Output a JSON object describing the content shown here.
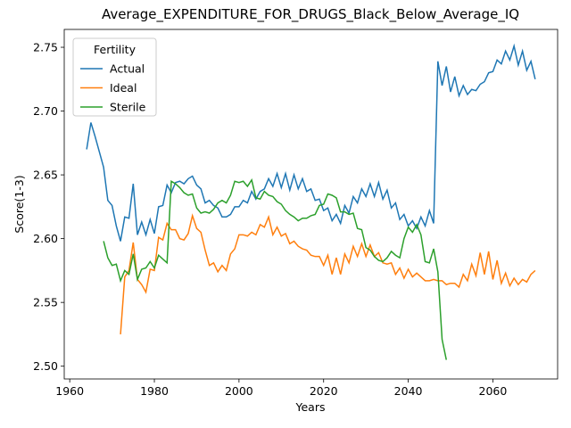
{
  "chart_data": {
    "type": "line",
    "title": "Average_EXPENDITURE_FOR_DRUGS_Black_Below_Average_IQ",
    "x_label": "Years",
    "y_label": "Score(1-3)",
    "legend_title": "Fertility",
    "legend_position": "upper-left",
    "grid": false,
    "xlim": [
      1958.7,
      2075.3
    ],
    "ylim": [
      2.49,
      2.764
    ],
    "xticks": [
      1960,
      1980,
      2000,
      2020,
      2040,
      2060
    ],
    "yticks": [
      {
        "value": 2.5,
        "label": "2.50"
      },
      2.55,
      {
        "value": 2.6,
        "label": "2.60"
      },
      2.65,
      {
        "value": 2.7,
        "label": "2.70"
      },
      2.75
    ],
    "x": [
      1964,
      1965,
      1966,
      1967,
      1968,
      1969,
      1970,
      1971,
      1972,
      1973,
      1974,
      1975,
      1976,
      1977,
      1978,
      1979,
      1980,
      1981,
      1982,
      1983,
      1984,
      1985,
      1986,
      1987,
      1988,
      1989,
      1990,
      1991,
      1992,
      1993,
      1994,
      1995,
      1996,
      1997,
      1998,
      1999,
      2000,
      2001,
      2002,
      2003,
      2004,
      2005,
      2006,
      2007,
      2008,
      2009,
      2010,
      2011,
      2012,
      2013,
      2014,
      2015,
      2016,
      2017,
      2018,
      2019,
      2020,
      2021,
      2022,
      2023,
      2024,
      2025,
      2026,
      2027,
      2028,
      2029,
      2030,
      2031,
      2032,
      2033,
      2034,
      2035,
      2036,
      2037,
      2038,
      2039,
      2040,
      2041,
      2042,
      2043,
      2044,
      2045,
      2046,
      2047,
      2048,
      2049,
      2050,
      2051,
      2052,
      2053,
      2054,
      2055,
      2056,
      2057,
      2058,
      2059,
      2060,
      2061,
      2062,
      2063,
      2064,
      2065,
      2066,
      2067,
      2068,
      2069,
      2070
    ],
    "series": [
      {
        "name": "Actual",
        "color": "#1f77b4",
        "values": [
          2.67,
          2.691,
          2.68,
          2.668,
          2.656,
          2.63,
          2.626,
          2.61,
          2.598,
          2.617,
          2.616,
          2.643,
          2.603,
          2.613,
          2.603,
          2.615,
          2.604,
          2.625,
          2.626,
          2.642,
          2.636,
          2.644,
          2.645,
          2.643,
          2.647,
          2.649,
          2.642,
          2.639,
          2.628,
          2.63,
          2.626,
          2.624,
          2.617,
          2.617,
          2.619,
          2.625,
          2.625,
          2.63,
          2.628,
          2.637,
          2.631,
          2.637,
          2.639,
          2.647,
          2.641,
          2.651,
          2.64,
          2.651,
          2.638,
          2.65,
          2.639,
          2.647,
          2.637,
          2.639,
          2.63,
          2.631,
          2.622,
          2.624,
          2.614,
          2.619,
          2.612,
          2.626,
          2.62,
          2.633,
          2.628,
          2.639,
          2.633,
          2.643,
          2.633,
          2.644,
          2.631,
          2.638,
          2.624,
          2.628,
          2.615,
          2.619,
          2.61,
          2.614,
          2.608,
          2.617,
          2.61,
          2.622,
          2.612,
          2.739,
          2.72,
          2.735,
          2.715,
          2.727,
          2.712,
          2.72,
          2.713,
          2.717,
          2.716,
          2.721,
          2.723,
          2.73,
          2.731,
          2.74,
          2.737,
          2.747,
          2.74,
          2.751,
          2.736,
          2.747,
          2.732,
          2.739,
          2.725
        ]
      },
      {
        "name": "Ideal",
        "color": "#ff7f0e",
        "values": [
          null,
          null,
          null,
          null,
          null,
          null,
          null,
          null,
          2.525,
          2.57,
          2.575,
          2.597,
          2.568,
          2.564,
          2.558,
          2.576,
          2.575,
          2.601,
          2.599,
          2.612,
          2.607,
          2.607,
          2.6,
          2.599,
          2.604,
          2.618,
          2.608,
          2.605,
          2.591,
          2.579,
          2.581,
          2.574,
          2.579,
          2.575,
          2.588,
          2.592,
          2.603,
          2.603,
          2.602,
          2.605,
          2.603,
          2.611,
          2.609,
          2.617,
          2.603,
          2.609,
          2.602,
          2.604,
          2.596,
          2.598,
          2.594,
          2.592,
          2.591,
          2.587,
          2.586,
          2.586,
          2.579,
          2.587,
          2.572,
          2.585,
          2.572,
          2.588,
          2.581,
          2.594,
          2.586,
          2.596,
          2.586,
          2.595,
          2.586,
          2.589,
          2.581,
          2.58,
          2.581,
          2.572,
          2.577,
          2.569,
          2.576,
          2.57,
          2.573,
          2.57,
          2.567,
          2.567,
          2.568,
          2.567,
          2.567,
          2.564,
          2.565,
          2.565,
          2.562,
          2.572,
          2.567,
          2.58,
          2.571,
          2.589,
          2.572,
          2.59,
          2.568,
          2.583,
          2.565,
          2.573,
          2.563,
          2.569,
          2.564,
          2.568,
          2.566,
          2.572,
          2.575
        ]
      },
      {
        "name": "Sterile",
        "color": "#2ca02c",
        "values": [
          null,
          null,
          null,
          null,
          2.598,
          2.585,
          2.579,
          2.58,
          2.567,
          2.575,
          2.572,
          2.588,
          2.568,
          2.576,
          2.577,
          2.582,
          2.577,
          2.587,
          2.584,
          2.581,
          2.645,
          2.643,
          2.64,
          2.636,
          2.634,
          2.635,
          2.624,
          2.62,
          2.621,
          2.62,
          2.623,
          2.628,
          2.63,
          2.628,
          2.634,
          2.645,
          2.644,
          2.645,
          2.641,
          2.646,
          2.632,
          2.631,
          2.637,
          2.634,
          2.633,
          2.629,
          2.627,
          2.622,
          2.619,
          2.617,
          2.614,
          2.616,
          2.616,
          2.618,
          2.619,
          2.626,
          2.627,
          2.635,
          2.634,
          2.632,
          2.621,
          2.621,
          2.619,
          2.62,
          2.608,
          2.607,
          2.593,
          2.591,
          2.586,
          2.583,
          2.582,
          2.585,
          2.59,
          2.587,
          2.585,
          2.6,
          2.609,
          2.605,
          2.611,
          2.603,
          2.582,
          2.581,
          2.592,
          2.574,
          2.521,
          2.505,
          null,
          null,
          null,
          null,
          null,
          null,
          null,
          null,
          null,
          null,
          null,
          null,
          null,
          null,
          null,
          null,
          null,
          null,
          null,
          null,
          null
        ]
      }
    ]
  }
}
